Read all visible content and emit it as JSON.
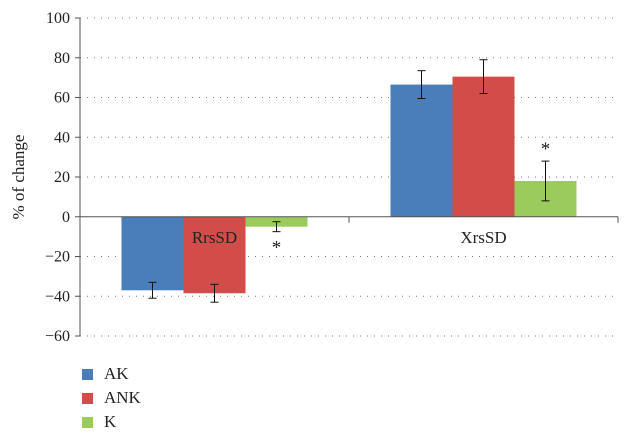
{
  "chart_data": {
    "type": "bar",
    "title": "",
    "xlabel": "",
    "ylabel": "% of change",
    "ylim": [
      -60,
      100
    ],
    "yticks": [
      100,
      80,
      60,
      40,
      20,
      0,
      -20,
      -40,
      -60
    ],
    "ytick_labels": [
      "100",
      "80",
      "60",
      "40",
      "20",
      "0",
      "−20",
      "−40",
      "−60"
    ],
    "grid": true,
    "legend_position": "bottom-left",
    "categories": [
      "RrsSD",
      "XrsSD"
    ],
    "series": [
      {
        "name": "AK",
        "color": "#4a7ebb",
        "values": [
          -37,
          66.5
        ],
        "errors": [
          4,
          7
        ]
      },
      {
        "name": "ANK",
        "color": "#d24d4a",
        "values": [
          -38.5,
          70.5
        ],
        "errors": [
          4.5,
          8.5
        ]
      },
      {
        "name": "K",
        "color": "#9bcb5d",
        "values": [
          -5,
          18
        ],
        "errors": [
          2.5,
          10
        ]
      }
    ],
    "annotations": [
      {
        "text": "*",
        "category": "RrsSD",
        "series": "K"
      },
      {
        "text": "*",
        "category": "XrsSD",
        "series": "K"
      }
    ]
  }
}
